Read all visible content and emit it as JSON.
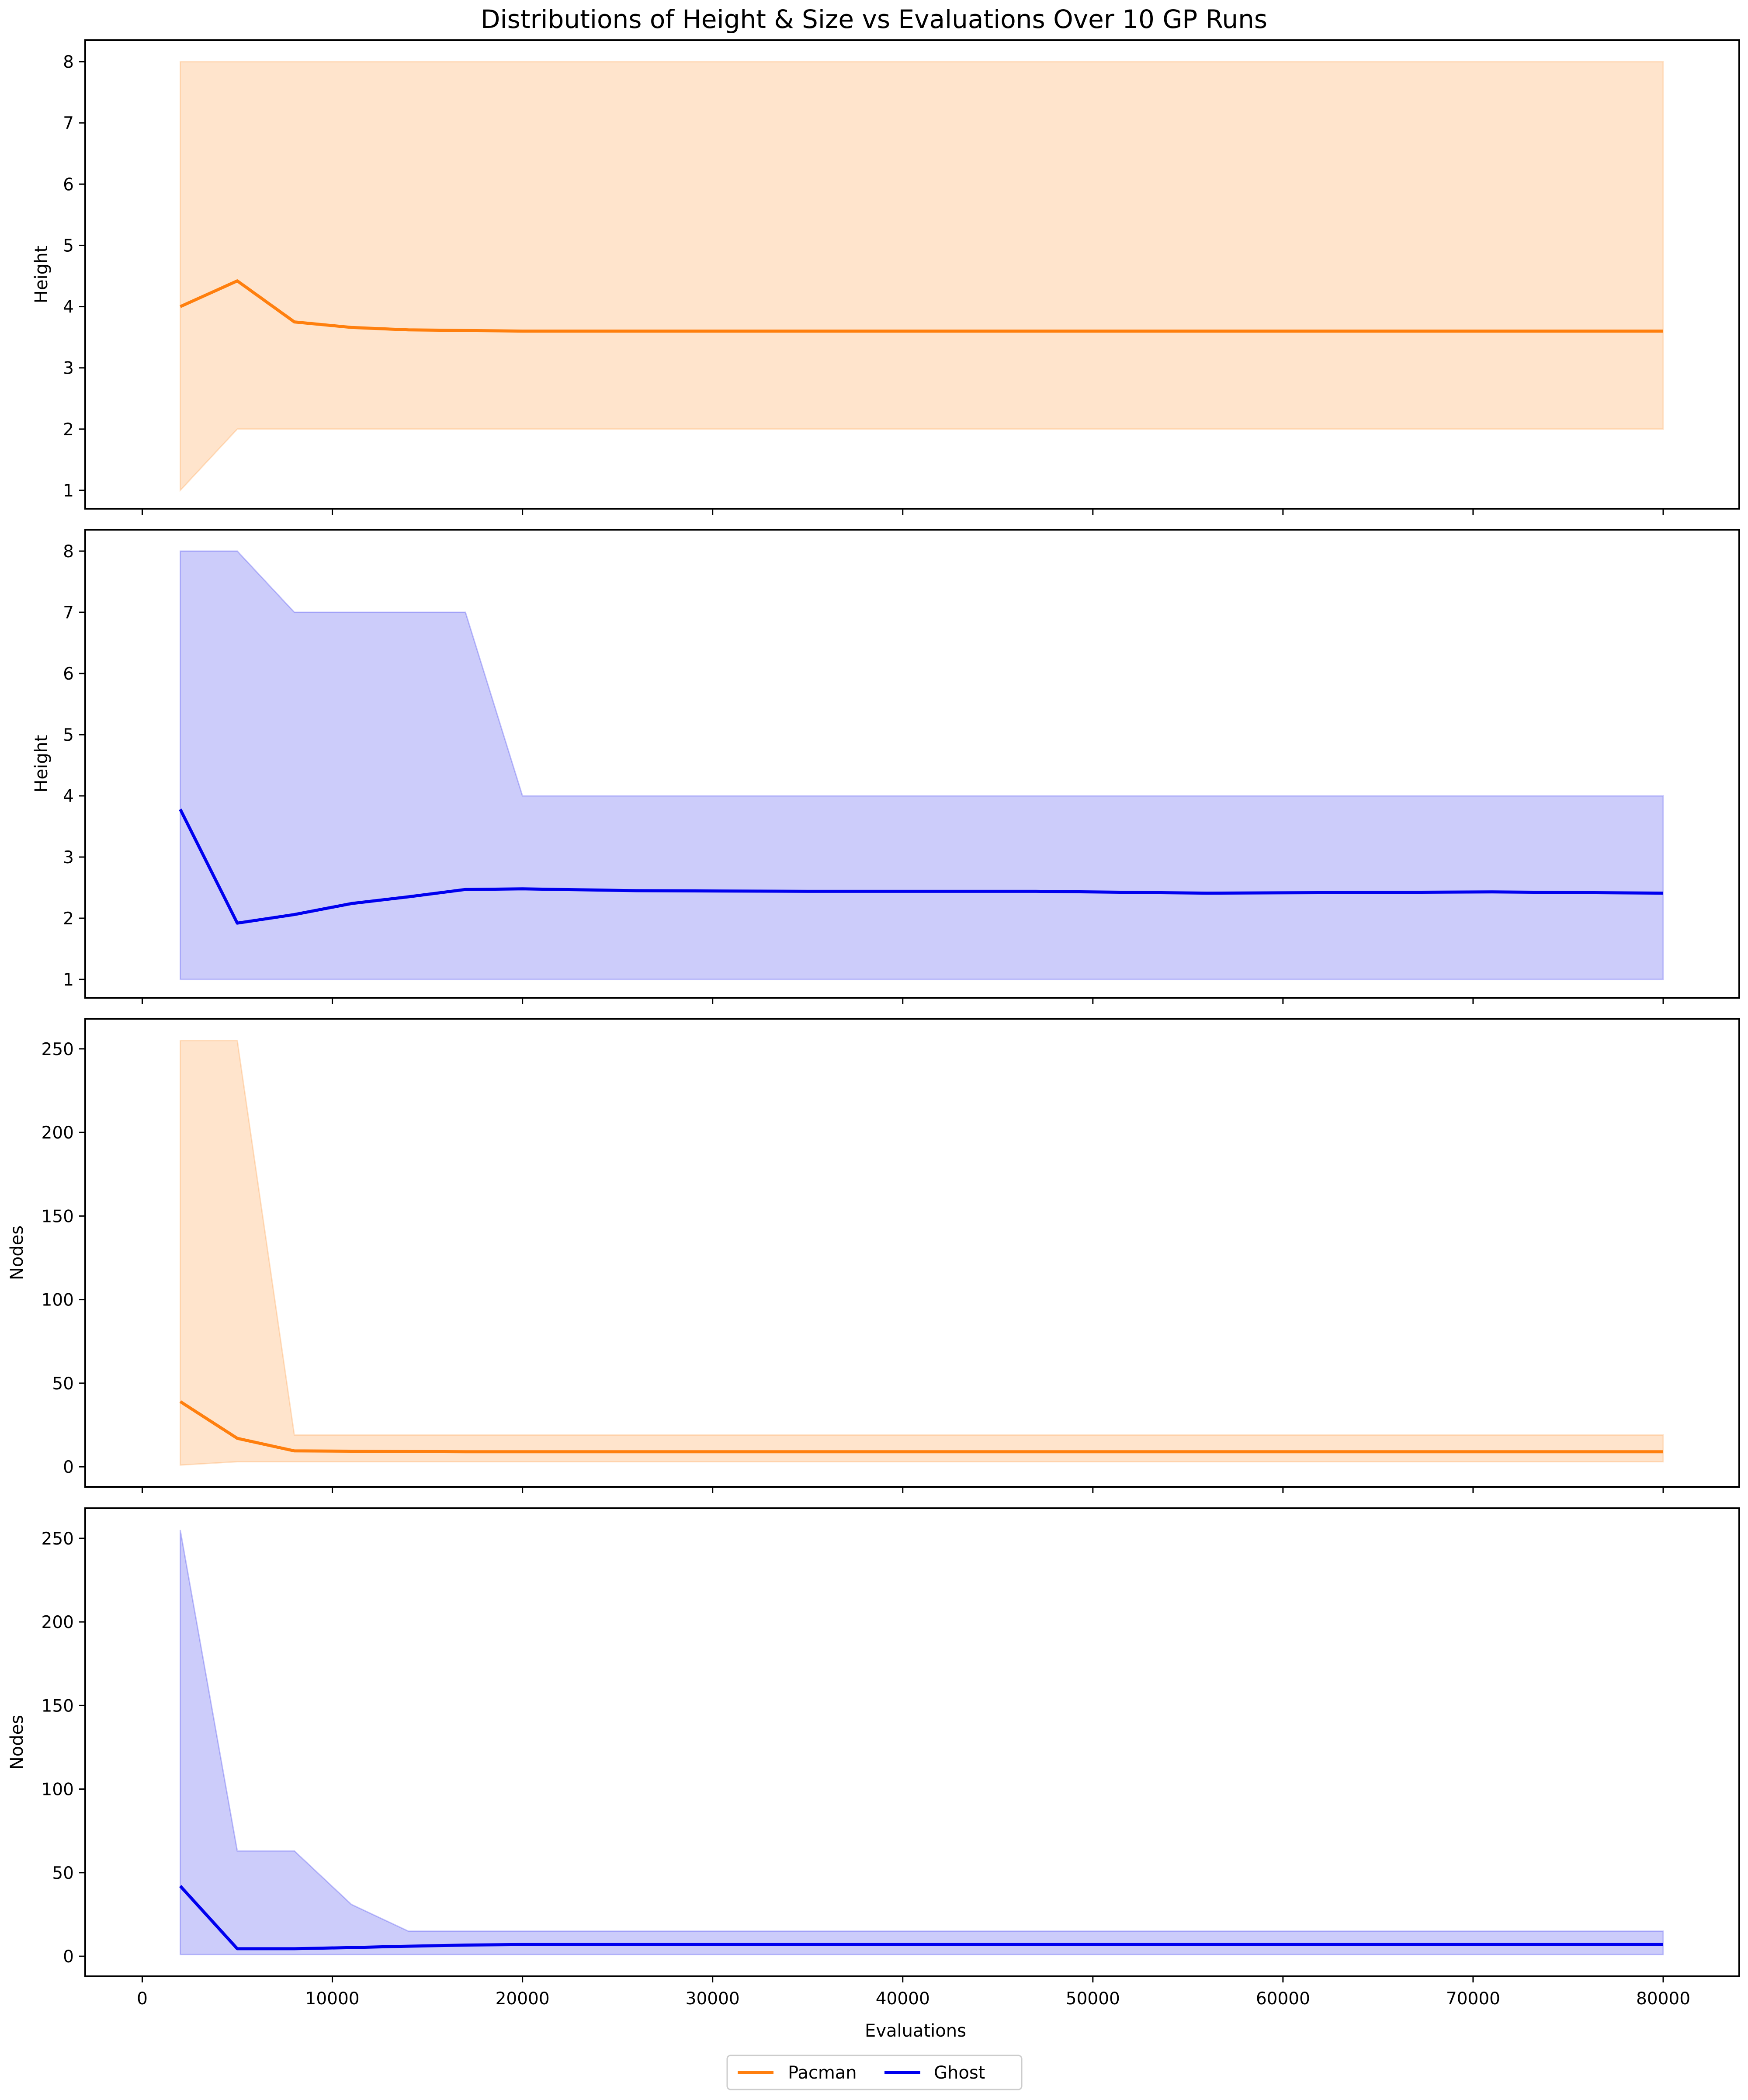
{
  "figure": {
    "title": "Distributions of Height & Size vs Evaluations Over 10 GP Runs",
    "xlabel": "Evaluations",
    "legend": [
      {
        "label": "Pacman",
        "color": "#ff7f0e"
      },
      {
        "label": "Ghost",
        "color": "#0000ee"
      }
    ]
  },
  "chart_data": [
    {
      "type": "area",
      "panel": 1,
      "ylabel": "Height",
      "xlim": [
        -3000,
        84000
      ],
      "ylim": [
        0.7,
        8.35
      ],
      "xticks": [
        0,
        10000,
        20000,
        30000,
        40000,
        50000,
        60000,
        70000,
        80000
      ],
      "yticks": [
        1,
        2,
        3,
        4,
        5,
        6,
        7,
        8
      ],
      "show_x_tick_labels": false,
      "series": [
        {
          "name": "Pacman",
          "color": "#ff7f0e",
          "fill_color": "#ffe4cc",
          "x": [
            2000,
            5000,
            8000,
            11000,
            14000,
            17000,
            20000,
            80000
          ],
          "mean": [
            4.0,
            4.42,
            3.75,
            3.66,
            3.62,
            3.61,
            3.6,
            3.6
          ],
          "min": [
            1,
            2,
            2,
            2,
            2,
            2,
            2,
            2
          ],
          "max": [
            8,
            8,
            8,
            8,
            8,
            8,
            8,
            8
          ]
        }
      ]
    },
    {
      "type": "area",
      "panel": 2,
      "ylabel": "Height",
      "xlim": [
        -3000,
        84000
      ],
      "ylim": [
        0.7,
        8.35
      ],
      "xticks": [
        0,
        10000,
        20000,
        30000,
        40000,
        50000,
        60000,
        70000,
        80000
      ],
      "yticks": [
        1,
        2,
        3,
        4,
        5,
        6,
        7,
        8
      ],
      "show_x_tick_labels": false,
      "series": [
        {
          "name": "Ghost",
          "color": "#0000ee",
          "fill_color": "#ccccfa",
          "x": [
            2000,
            5000,
            8000,
            11000,
            14000,
            17000,
            20000,
            26000,
            35000,
            47000,
            56000,
            71000,
            80000
          ],
          "mean": [
            3.78,
            1.92,
            2.06,
            2.24,
            2.35,
            2.47,
            2.48,
            2.45,
            2.44,
            2.44,
            2.41,
            2.43,
            2.41
          ],
          "min": [
            1,
            1,
            1,
            1,
            1,
            1,
            1,
            1,
            1,
            1,
            1,
            1,
            1
          ],
          "max": [
            8,
            8,
            7,
            7,
            7,
            7,
            4,
            4,
            4,
            4,
            4,
            4,
            4
          ]
        }
      ]
    },
    {
      "type": "area",
      "panel": 3,
      "ylabel": "Nodes",
      "xlim": [
        -3000,
        84000
      ],
      "ylim": [
        -12,
        268
      ],
      "xticks": [
        0,
        10000,
        20000,
        30000,
        40000,
        50000,
        60000,
        70000,
        80000
      ],
      "yticks": [
        0,
        50,
        100,
        150,
        200,
        250
      ],
      "show_x_tick_labels": false,
      "series": [
        {
          "name": "Pacman",
          "color": "#ff7f0e",
          "fill_color": "#ffe4cc",
          "x": [
            2000,
            5000,
            8000,
            11000,
            14000,
            17000,
            20000,
            80000
          ],
          "mean": [
            39,
            17,
            9.5,
            9.3,
            9.1,
            9,
            9,
            9
          ],
          "min": [
            1,
            3,
            3,
            3,
            3,
            3,
            3,
            3
          ],
          "max": [
            255,
            255,
            19,
            19,
            19,
            19,
            19,
            19
          ]
        }
      ]
    },
    {
      "type": "area",
      "panel": 4,
      "ylabel": "Nodes",
      "xlim": [
        -3000,
        84000
      ],
      "ylim": [
        -12,
        268
      ],
      "xticks": [
        0,
        10000,
        20000,
        30000,
        40000,
        50000,
        60000,
        70000,
        80000
      ],
      "yticks": [
        0,
        50,
        100,
        150,
        200,
        250
      ],
      "show_x_tick_labels": true,
      "series": [
        {
          "name": "Ghost",
          "color": "#0000ee",
          "fill_color": "#ccccfa",
          "x": [
            2000,
            5000,
            8000,
            11000,
            14000,
            17000,
            20000,
            80000
          ],
          "mean": [
            42,
            4.5,
            4.5,
            5.2,
            6,
            6.7,
            7,
            7
          ],
          "min": [
            1,
            1,
            1,
            1,
            1,
            1,
            1,
            1
          ],
          "max": [
            255,
            63,
            63,
            31,
            15,
            15,
            15,
            15
          ]
        }
      ]
    }
  ]
}
